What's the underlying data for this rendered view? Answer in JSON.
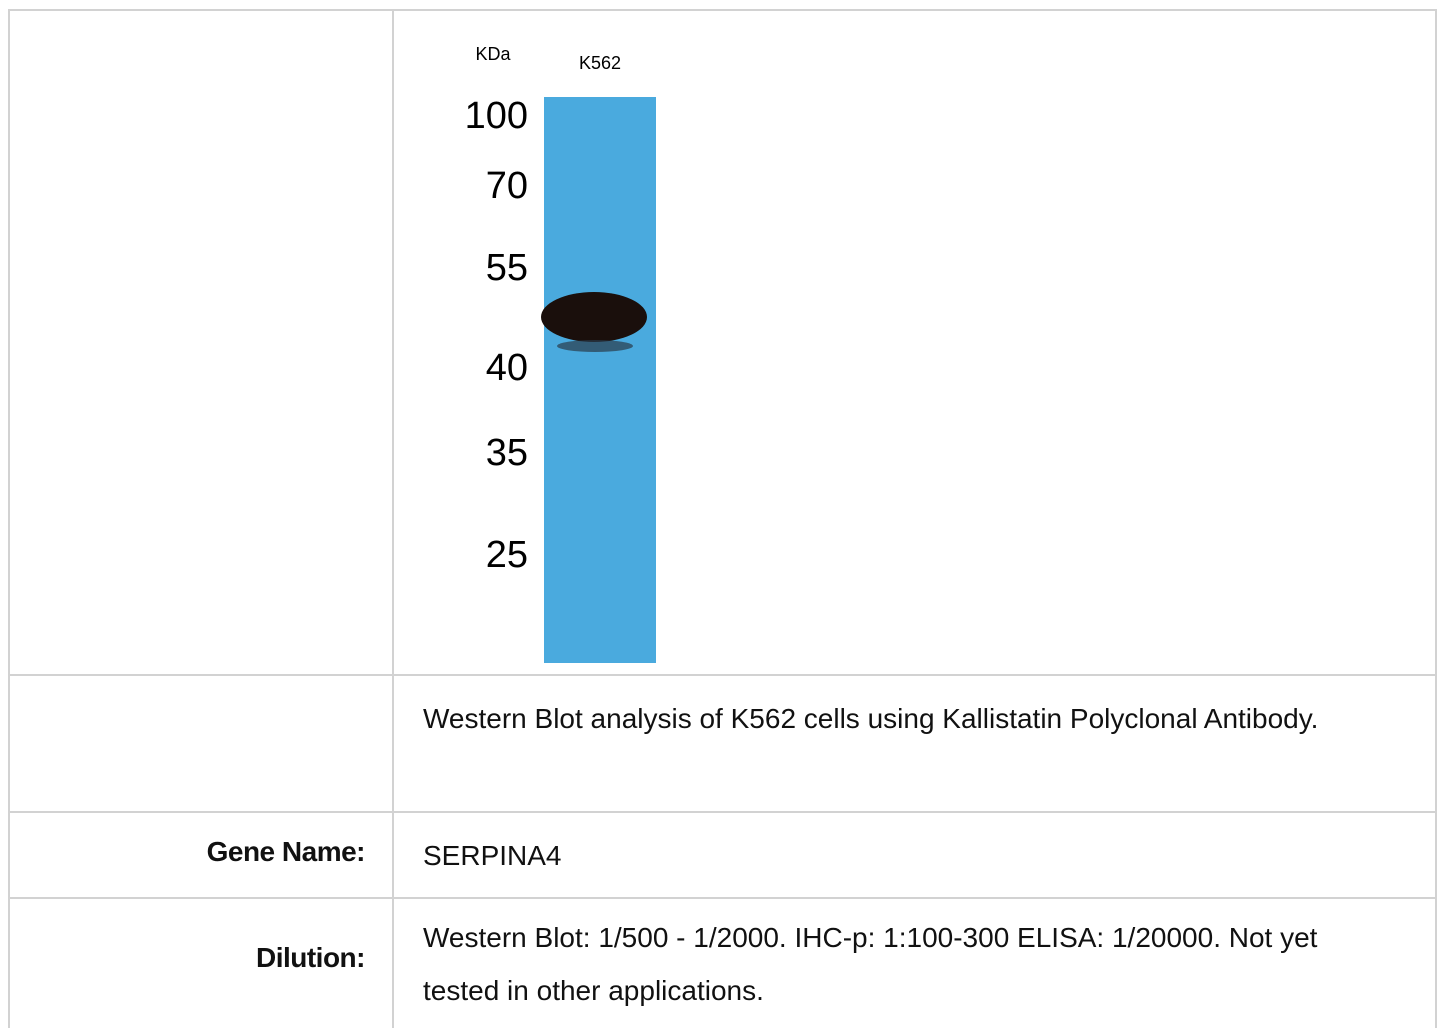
{
  "figure": {
    "blot": {
      "unit_label": "KDa",
      "lane_label": "K562",
      "markers": [
        "100",
        "70",
        "55",
        "40",
        "35",
        "25"
      ]
    },
    "caption": "Western Blot analysis of K562 cells using Kallistatin Polyclonal Antibody."
  },
  "table": {
    "rows": [
      [
        "Gene Name:",
        "SERPINA4"
      ],
      [
        "Dilution:",
        "Western Blot: 1/500 - 1/2000. IHC-p: 1:100-300 ELISA: 1/20000. Not yet tested in other applications."
      ]
    ]
  }
}
